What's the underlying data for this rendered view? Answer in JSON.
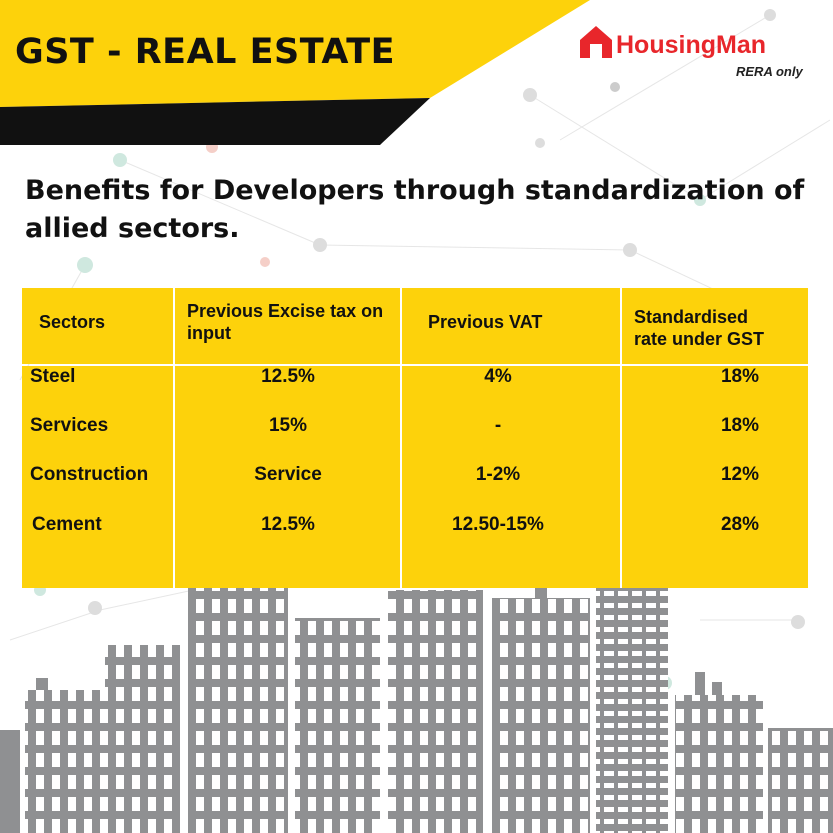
{
  "header": {
    "title": "GST - REAL ESTATE",
    "brand": "HousingMan",
    "tagline": "RERA only"
  },
  "heading": "Benefits for Developers through standardization of allied sectors.",
  "table": {
    "columns": [
      "Sectors",
      "Previous Excise tax on input",
      "Previous VAT",
      "Standardised rate under GST"
    ],
    "rows": [
      [
        "Steel",
        "12.5%",
        "4%",
        "18%"
      ],
      [
        "Services",
        "15%",
        "-",
        "18%"
      ],
      [
        "Construction",
        "Service",
        "1-2%",
        "12%"
      ],
      [
        "Cement",
        "12.5%",
        "12.50-15%",
        "28%"
      ]
    ]
  }
}
